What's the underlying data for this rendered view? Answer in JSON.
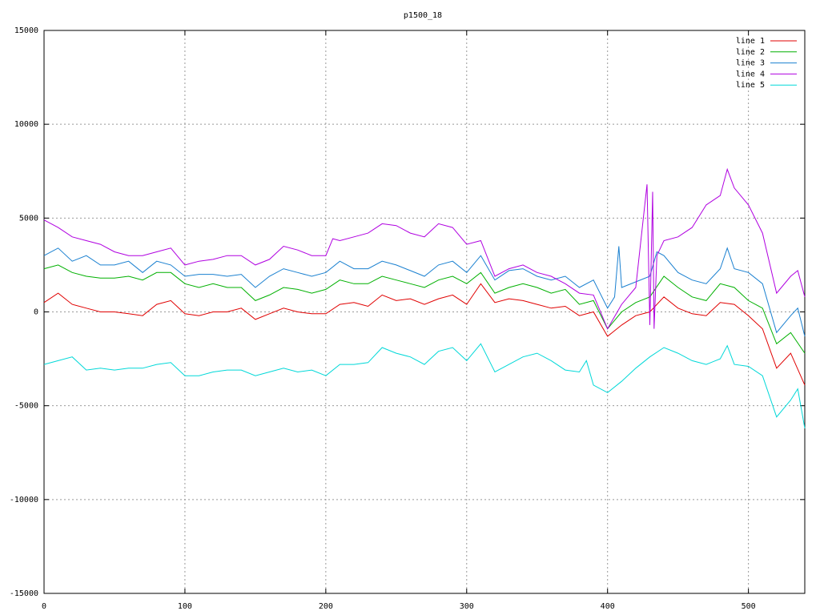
{
  "chart_data": {
    "type": "line",
    "title": "p1500_18",
    "xlim": [
      0,
      540
    ],
    "ylim": [
      -15000,
      15000
    ],
    "xticks": [
      0,
      100,
      200,
      300,
      400,
      500
    ],
    "yticks": [
      -15000,
      -10000,
      -5000,
      0,
      5000,
      10000,
      15000
    ],
    "grid": true,
    "legend": "upper right",
    "series": [
      {
        "name": "line 1",
        "color": "#e00000",
        "x": [
          0,
          10,
          20,
          30,
          40,
          50,
          60,
          70,
          80,
          90,
          100,
          110,
          120,
          130,
          140,
          150,
          160,
          170,
          180,
          190,
          200,
          210,
          220,
          230,
          240,
          250,
          260,
          270,
          280,
          290,
          300,
          310,
          320,
          330,
          340,
          350,
          360,
          370,
          380,
          390,
          400,
          410,
          420,
          430,
          440,
          450,
          460,
          470,
          480,
          490,
          500,
          510,
          520,
          530,
          540
        ],
        "values": [
          500,
          1000,
          400,
          200,
          0,
          0,
          -100,
          -200,
          400,
          600,
          -100,
          -200,
          0,
          0,
          200,
          -400,
          -100,
          200,
          0,
          -100,
          -100,
          400,
          500,
          300,
          900,
          600,
          700,
          400,
          700,
          900,
          400,
          1500,
          500,
          700,
          600,
          400,
          200,
          300,
          -200,
          0,
          -1300,
          -700,
          -200,
          0,
          800,
          200,
          -100,
          -200,
          500,
          400,
          -200,
          -900,
          -3000,
          -2200,
          -3900
        ]
      },
      {
        "name": "line 2",
        "color": "#00b000",
        "x": [
          0,
          10,
          20,
          30,
          40,
          50,
          60,
          70,
          80,
          90,
          100,
          110,
          120,
          130,
          140,
          150,
          160,
          170,
          180,
          190,
          200,
          210,
          220,
          230,
          240,
          250,
          260,
          270,
          280,
          290,
          300,
          310,
          320,
          330,
          340,
          350,
          360,
          370,
          380,
          390,
          400,
          410,
          420,
          430,
          440,
          450,
          460,
          470,
          480,
          490,
          500,
          510,
          520,
          530,
          540
        ],
        "values": [
          2300,
          2500,
          2100,
          1900,
          1800,
          1800,
          1900,
          1700,
          2100,
          2100,
          1500,
          1300,
          1500,
          1300,
          1300,
          600,
          900,
          1300,
          1200,
          1000,
          1200,
          1700,
          1500,
          1500,
          1900,
          1700,
          1500,
          1300,
          1700,
          1900,
          1500,
          2100,
          1000,
          1300,
          1500,
          1300,
          1000,
          1200,
          400,
          600,
          -900,
          0,
          500,
          800,
          1900,
          1300,
          800,
          600,
          1500,
          1300,
          600,
          200,
          -1700,
          -1100,
          -2200
        ]
      },
      {
        "name": "line 3",
        "color": "#1a80d0",
        "x": [
          0,
          10,
          20,
          30,
          40,
          50,
          60,
          70,
          80,
          90,
          100,
          110,
          120,
          130,
          140,
          150,
          160,
          170,
          180,
          190,
          200,
          210,
          220,
          230,
          240,
          250,
          260,
          270,
          280,
          290,
          300,
          310,
          320,
          330,
          340,
          350,
          360,
          370,
          380,
          390,
          400,
          405,
          408,
          410,
          420,
          430,
          435,
          440,
          450,
          460,
          470,
          480,
          485,
          490,
          500,
          510,
          520,
          530,
          535,
          540
        ],
        "values": [
          3000,
          3400,
          2700,
          3000,
          2500,
          2500,
          2700,
          2100,
          2700,
          2500,
          1900,
          2000,
          2000,
          1900,
          2000,
          1300,
          1900,
          2300,
          2100,
          1900,
          2100,
          2700,
          2300,
          2300,
          2700,
          2500,
          2200,
          1900,
          2500,
          2700,
          2100,
          3000,
          1700,
          2200,
          2300,
          1900,
          1700,
          1900,
          1300,
          1700,
          200,
          800,
          3500,
          1300,
          1600,
          1900,
          3200,
          3000,
          2100,
          1700,
          1500,
          2300,
          3400,
          2300,
          2100,
          1500,
          -1100,
          -200,
          200,
          -1300
        ]
      },
      {
        "name": "line 4",
        "color": "#b000e0",
        "x": [
          0,
          10,
          20,
          30,
          40,
          50,
          60,
          70,
          80,
          90,
          100,
          110,
          120,
          130,
          140,
          150,
          160,
          170,
          180,
          190,
          200,
          205,
          210,
          220,
          230,
          240,
          250,
          260,
          270,
          280,
          290,
          300,
          310,
          320,
          330,
          340,
          350,
          360,
          370,
          380,
          390,
          400,
          410,
          420,
          428,
          430,
          432,
          433,
          435,
          440,
          450,
          460,
          470,
          480,
          485,
          490,
          500,
          510,
          520,
          530,
          535,
          540
        ],
        "values": [
          4900,
          4500,
          4000,
          3800,
          3600,
          3200,
          3000,
          3000,
          3200,
          3400,
          2500,
          2700,
          2800,
          3000,
          3000,
          2500,
          2800,
          3500,
          3300,
          3000,
          3000,
          3900,
          3800,
          4000,
          4200,
          4700,
          4600,
          4200,
          4000,
          4700,
          4500,
          3600,
          3800,
          1900,
          2300,
          2500,
          2100,
          1900,
          1500,
          1000,
          900,
          -900,
          400,
          1300,
          6800,
          -700,
          6400,
          -900,
          3000,
          3800,
          4000,
          4500,
          5700,
          6200,
          7600,
          6600,
          5700,
          4200,
          1000,
          1900,
          2200,
          800
        ]
      },
      {
        "name": "line 5",
        "color": "#00d8d8",
        "x": [
          0,
          10,
          20,
          30,
          40,
          50,
          60,
          70,
          80,
          90,
          100,
          110,
          120,
          130,
          140,
          150,
          160,
          170,
          180,
          190,
          200,
          210,
          220,
          230,
          240,
          250,
          260,
          270,
          280,
          290,
          300,
          310,
          320,
          330,
          340,
          350,
          360,
          370,
          380,
          385,
          390,
          400,
          410,
          420,
          430,
          440,
          450,
          460,
          470,
          480,
          485,
          490,
          500,
          510,
          520,
          530,
          535,
          540
        ],
        "values": [
          -2800,
          -2600,
          -2400,
          -3100,
          -3000,
          -3100,
          -3000,
          -3000,
          -2800,
          -2700,
          -3400,
          -3400,
          -3200,
          -3100,
          -3100,
          -3400,
          -3200,
          -3000,
          -3200,
          -3100,
          -3400,
          -2800,
          -2800,
          -2700,
          -1900,
          -2200,
          -2400,
          -2800,
          -2100,
          -1900,
          -2600,
          -1700,
          -3200,
          -2800,
          -2400,
          -2200,
          -2600,
          -3100,
          -3200,
          -2600,
          -3900,
          -4300,
          -3700,
          -3000,
          -2400,
          -1900,
          -2200,
          -2600,
          -2800,
          -2500,
          -1800,
          -2800,
          -2900,
          -3400,
          -5600,
          -4700,
          -4100,
          -6200
        ]
      }
    ]
  }
}
